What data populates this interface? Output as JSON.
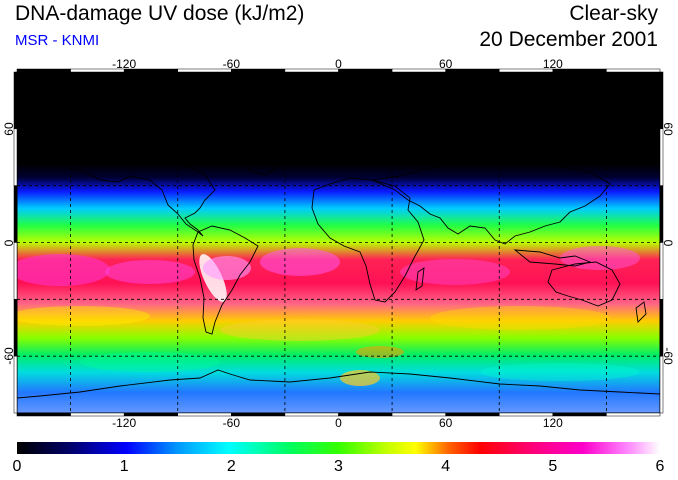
{
  "header": {
    "title": "DNA-damage UV dose (kJ/m2)",
    "subtitle": "MSR - KNMI",
    "condition": "Clear-sky",
    "date": "20 December 2001"
  },
  "axes": {
    "longitude_ticks": [
      "-120",
      "-60",
      "0",
      "60",
      "120"
    ],
    "latitude_ticks": [
      "60",
      "0",
      "-60"
    ]
  },
  "colorbar": {
    "labels": [
      "0",
      "1",
      "2",
      "3",
      "4",
      "5",
      "6"
    ],
    "colors": [
      "#000000",
      "#0000cc",
      "#00ffff",
      "#00ff00",
      "#ffff00",
      "#ff0000",
      "#ff00ff",
      "#ffffff"
    ]
  },
  "map": {
    "extent": {
      "lon_min": -180,
      "lon_max": 180,
      "lat_min": -90,
      "lat_max": 90
    },
    "gridline_longitudes": [
      -150,
      -90,
      -30,
      30,
      90,
      150
    ],
    "gridline_latitudes": [
      -60,
      -30,
      0,
      30,
      60
    ]
  }
}
